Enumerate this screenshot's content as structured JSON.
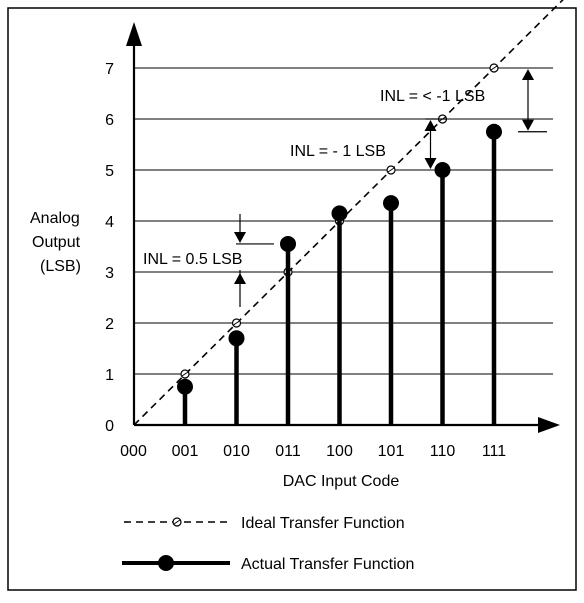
{
  "chart_data": {
    "type": "line",
    "xlabel": "DAC Input Code",
    "ylabel": [
      "Analog",
      "Output",
      "(LSB)"
    ],
    "categories": [
      "000",
      "001",
      "010",
      "011",
      "100",
      "101",
      "110",
      "111"
    ],
    "yticks": [
      "0",
      "1",
      "2",
      "3",
      "4",
      "5",
      "6",
      "7"
    ],
    "ylim": [
      0,
      7.9
    ],
    "grid": true,
    "series": [
      {
        "name": "Ideal Transfer Function",
        "style": "dashed-line-open-circle",
        "values": [
          0,
          1,
          2,
          3,
          4,
          5,
          6,
          7
        ]
      },
      {
        "name": "Actual Transfer Function",
        "style": "stem-filled-circle",
        "values": [
          null,
          0.75,
          1.7,
          3.55,
          4.15,
          4.35,
          5.0,
          5.75
        ]
      }
    ],
    "annotations": [
      {
        "text": "INL = 0.5 LSB",
        "code": "011",
        "from": 3,
        "to": 3.55
      },
      {
        "text": "INL = - 1 LSB",
        "code": "110",
        "from": 6,
        "to": 5.0
      },
      {
        "text": "INL = < -1 LSB",
        "code": "111",
        "from": 7,
        "to": 5.75
      }
    ],
    "legend": {
      "placement": "bottom-left",
      "items": [
        "Ideal Transfer Function",
        "Actual Transfer Function"
      ]
    },
    "colors": {
      "ink": "#000000",
      "background": "#ffffff"
    }
  }
}
